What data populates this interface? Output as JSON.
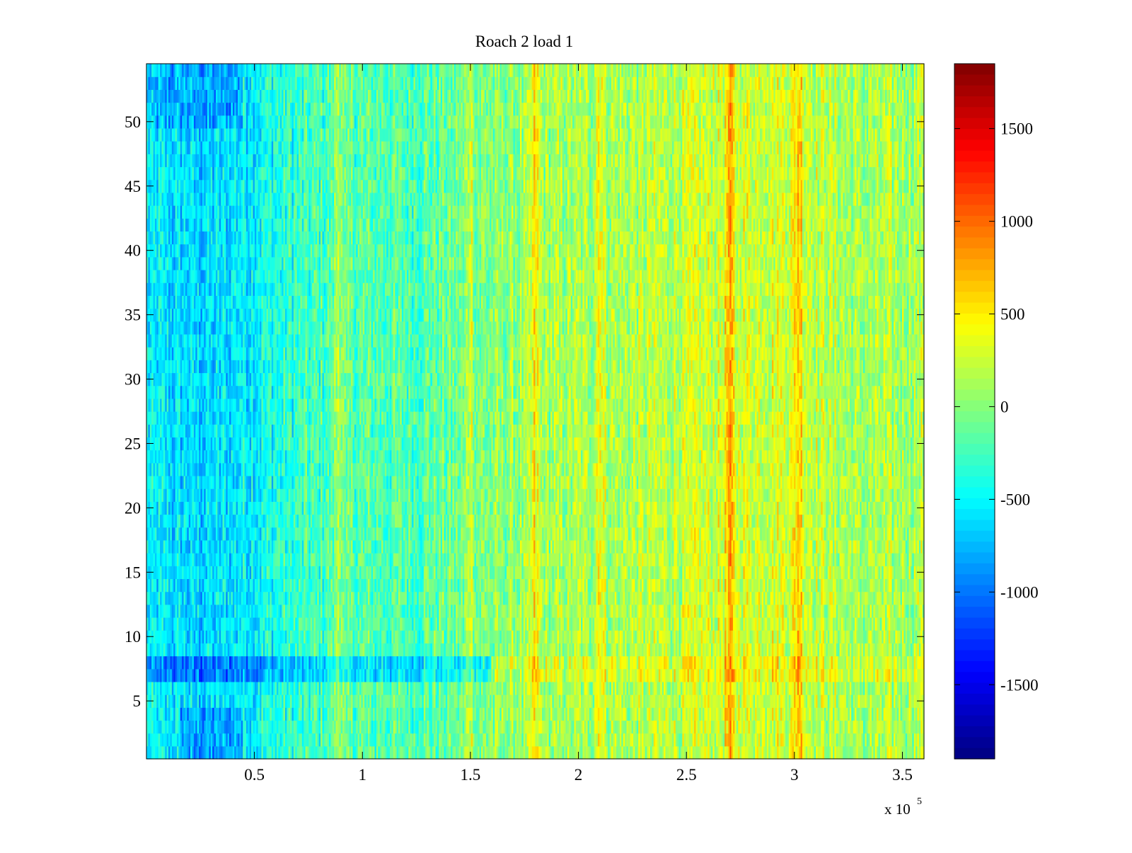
{
  "chart_data": {
    "type": "heatmap",
    "title": "Roach 2 load 1",
    "xlabel": "",
    "ylabel": "",
    "x_multiplier_label": "x 10",
    "x_multiplier_exponent": "5",
    "xlim": [
      0,
      3.6
    ],
    "ylim": [
      0.5,
      54.5
    ],
    "x_ticks": [
      0.5,
      1,
      1.5,
      2,
      2.5,
      3,
      3.5
    ],
    "x_tick_labels": [
      "0.5",
      "1",
      "1.5",
      "2",
      "2.5",
      "3",
      "3.5"
    ],
    "y_ticks": [
      5,
      10,
      15,
      20,
      25,
      30,
      35,
      40,
      45,
      50
    ],
    "y_tick_labels": [
      "5",
      "10",
      "15",
      "20",
      "25",
      "30",
      "35",
      "40",
      "45",
      "50"
    ],
    "colorbar": {
      "colormap": "jet",
      "clim": [
        -1900,
        1850
      ],
      "ticks": [
        -1500,
        -1000,
        -500,
        0,
        500,
        1000,
        1500
      ],
      "tick_labels": [
        "-1500",
        "-1000",
        "-500",
        "0",
        "500",
        "1000",
        "1500"
      ]
    },
    "rows": 54,
    "x_range": [
      0,
      3.6
    ],
    "grid": false,
    "trend_profile": {
      "x": [
        0,
        0.3,
        0.6,
        0.9,
        1.2,
        1.5,
        1.8,
        2.1,
        2.4,
        2.7,
        3.0,
        3.3,
        3.6
      ],
      "mean": [
        -550,
        -650,
        -400,
        -180,
        -200,
        -80,
        80,
        120,
        180,
        300,
        320,
        80,
        150
      ]
    },
    "hot_bands_x": [
      0.89,
      1.5,
      1.8,
      2.1,
      2.7,
      3.02
    ],
    "cold_band_rows": [
      7,
      8
    ]
  }
}
